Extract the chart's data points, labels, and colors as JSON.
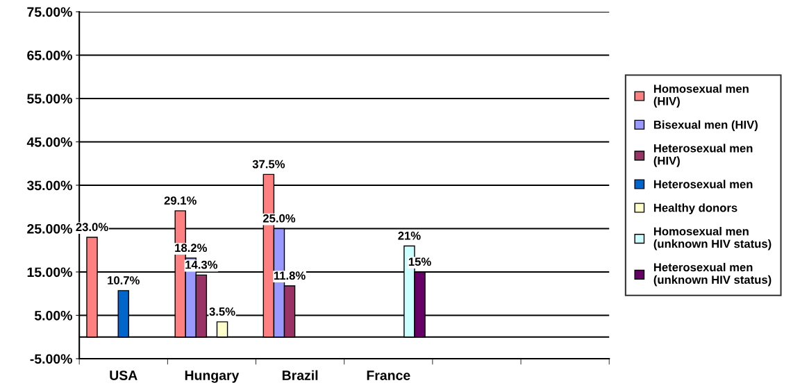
{
  "chart_data": {
    "type": "bar",
    "categories": [
      "USA",
      "Hungary",
      "Brazil",
      "France",
      null,
      null
    ],
    "series": [
      {
        "name": "Homosexual men\n(HIV)",
        "color": "#ff8080",
        "values": [
          23.0,
          29.1,
          37.5,
          null,
          null,
          null
        ],
        "value_labels": [
          "23.0%",
          "29.1%",
          "37.5%",
          null,
          null,
          null
        ]
      },
      {
        "name": "Bisexual men (HIV)",
        "color": "#9999ff",
        "values": [
          null,
          18.2,
          25.0,
          null,
          null,
          null
        ],
        "value_labels": [
          null,
          "18.2%",
          "25.0%",
          null,
          null,
          null
        ]
      },
      {
        "name": "Heterosexual men\n(HIV)",
        "color": "#993366",
        "values": [
          null,
          14.3,
          11.8,
          null,
          null,
          null
        ],
        "value_labels": [
          null,
          "14.3%",
          "11.8%",
          null,
          null,
          null
        ]
      },
      {
        "name": "Heterosexual men",
        "color": "#0066cc",
        "values": [
          10.7,
          null,
          null,
          null,
          null,
          null
        ],
        "value_labels": [
          "10.7%",
          null,
          null,
          null,
          null,
          null
        ]
      },
      {
        "name": "Healthy donors",
        "color": "#ffffcc",
        "values": [
          null,
          3.5,
          null,
          null,
          null,
          null
        ],
        "value_labels": [
          null,
          "3.5%",
          null,
          null,
          null,
          null
        ]
      },
      {
        "name": "Homosexual men\n(unknown HIV status)",
        "color": "#ccffff",
        "values": [
          null,
          null,
          null,
          21,
          null,
          null
        ],
        "value_labels": [
          null,
          null,
          null,
          "21%",
          null,
          null
        ]
      },
      {
        "name": "Heterosexual men\n(unknown HIV status)",
        "color": "#660066",
        "values": [
          null,
          null,
          null,
          15,
          null,
          null
        ],
        "value_labels": [
          null,
          null,
          null,
          "15%",
          null,
          null
        ]
      }
    ],
    "ylim": [
      -5,
      75
    ],
    "yticks": [
      {
        "value": -5,
        "label": "-5.00%"
      },
      {
        "value": 5,
        "label": "5.00%"
      },
      {
        "value": 15,
        "label": "15.00%"
      },
      {
        "value": 25,
        "label": "25.00%"
      },
      {
        "value": 35,
        "label": "35.00%"
      },
      {
        "value": 45,
        "label": "45.00%"
      },
      {
        "value": 55,
        "label": "55.00%"
      },
      {
        "value": 65,
        "label": "65.00%"
      },
      {
        "value": 75,
        "label": "75.00%"
      }
    ],
    "ref_lines": [
      {
        "axis": "y",
        "value": 0,
        "color": "#000000"
      }
    ],
    "grid": "y",
    "legend": "right"
  }
}
